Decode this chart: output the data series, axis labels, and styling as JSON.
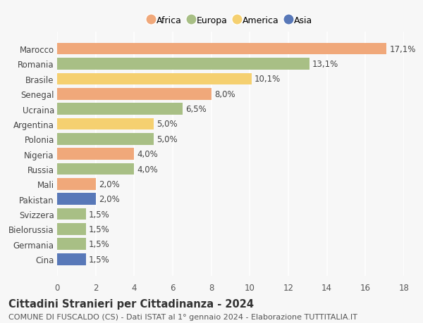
{
  "countries": [
    "Marocco",
    "Romania",
    "Brasile",
    "Senegal",
    "Ucraina",
    "Argentina",
    "Polonia",
    "Nigeria",
    "Russia",
    "Mali",
    "Pakistan",
    "Svizzera",
    "Bielorussia",
    "Germania",
    "Cina"
  ],
  "values": [
    17.1,
    13.1,
    10.1,
    8.0,
    6.5,
    5.0,
    5.0,
    4.0,
    4.0,
    2.0,
    2.0,
    1.5,
    1.5,
    1.5,
    1.5
  ],
  "labels": [
    "17,1%",
    "13,1%",
    "10,1%",
    "8,0%",
    "6,5%",
    "5,0%",
    "5,0%",
    "4,0%",
    "4,0%",
    "2,0%",
    "2,0%",
    "1,5%",
    "1,5%",
    "1,5%",
    "1,5%"
  ],
  "continents": [
    "Africa",
    "Europa",
    "America",
    "Africa",
    "Europa",
    "America",
    "Europa",
    "Africa",
    "Europa",
    "Africa",
    "Asia",
    "Europa",
    "Europa",
    "Europa",
    "Asia"
  ],
  "continent_colors": {
    "Africa": "#F0A87A",
    "Europa": "#A8BF85",
    "America": "#F5D070",
    "Asia": "#5878B8"
  },
  "legend_order": [
    "Africa",
    "Europa",
    "America",
    "Asia"
  ],
  "xlim": [
    0,
    18
  ],
  "xticks": [
    0,
    2,
    4,
    6,
    8,
    10,
    12,
    14,
    16,
    18
  ],
  "title": "Cittadini Stranieri per Cittadinanza - 2024",
  "subtitle": "COMUNE DI FUSCALDO (CS) - Dati ISTAT al 1° gennaio 2024 - Elaborazione TUTTITALIA.IT",
  "background_color": "#f7f7f7",
  "bar_height": 0.78,
  "label_fontsize": 8.5,
  "ytick_fontsize": 8.5,
  "xtick_fontsize": 8.5,
  "title_fontsize": 10.5,
  "subtitle_fontsize": 8.0
}
